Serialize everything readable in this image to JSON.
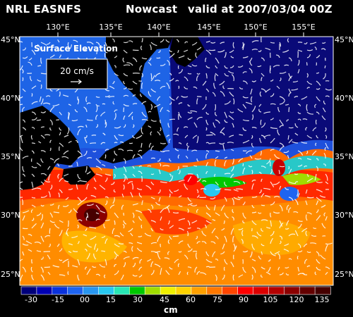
{
  "header": {
    "agency": "NRL EASNFS",
    "product": "Nowcast",
    "valid": "valid at 2007/03/04 00Z"
  },
  "map": {
    "field_label": "Surface Elevation",
    "vector_scale_label": "20 cm/s",
    "lon_ticks": [
      "130°E",
      "135°E",
      "140°E",
      "145°E",
      "150°E",
      "155°E"
    ],
    "lat_ticks_left": [
      "45°N",
      "40°N",
      "35°N",
      "30°N",
      "25°N"
    ],
    "lat_ticks_right": [
      "45°N",
      "40°N",
      "35°N",
      "30°N",
      "25°N"
    ],
    "colors": {
      "land": "#000000",
      "low": "#0a0a6e",
      "mid": "#1e9be6",
      "high": "#ff5a00",
      "eddy": "#5a0000"
    }
  },
  "colorbar": {
    "unit": "cm",
    "tick_labels": [
      "-30",
      "-15",
      "00",
      "15",
      "30",
      "45",
      "60",
      "75",
      "90",
      "105",
      "120",
      "135"
    ],
    "colors": [
      "#00007a",
      "#0000b4",
      "#0a32dc",
      "#1e64f0",
      "#2896f0",
      "#28c8f0",
      "#28e6b4",
      "#00c800",
      "#a0dc00",
      "#f0f000",
      "#ffd200",
      "#ffa000",
      "#ff7800",
      "#ff4600",
      "#ff0000",
      "#dc0000",
      "#b40000",
      "#8c0000",
      "#640000",
      "#460000"
    ]
  }
}
